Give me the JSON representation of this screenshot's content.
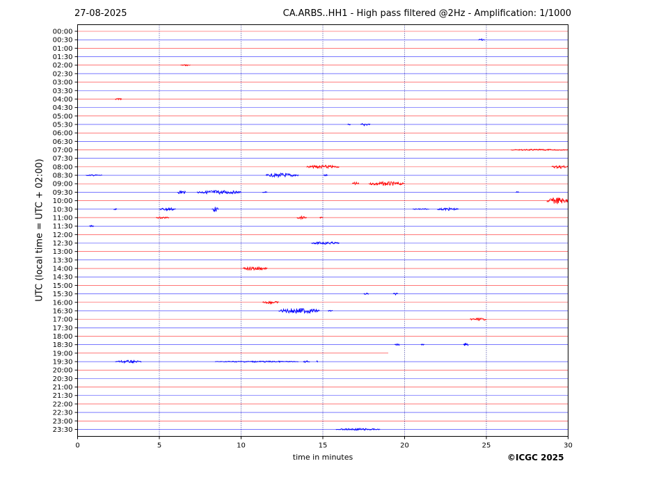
{
  "header": {
    "date": "27-08-2025",
    "title": "CA.ARBS..HH1 - High pass filtered @2Hz - Amplification: 1/1000"
  },
  "chart_data": {
    "type": "line",
    "title": "CA.ARBS..HH1 - High pass filtered @2Hz - Amplification: 1/1000",
    "xlabel": "time in minutes",
    "ylabel": "UTC (local time = UTC + 02:00)",
    "xlim": [
      0,
      30
    ],
    "xticks": [
      "0",
      "5",
      "10",
      "15",
      "20",
      "25",
      "30"
    ],
    "grid": "vertical dotted lines at 5-minute intervals",
    "trace_colors": [
      "#ff0000",
      "#0000ff"
    ],
    "rows": [
      "00:00",
      "00:30",
      "01:00",
      "01:30",
      "02:00",
      "02:30",
      "03:00",
      "03:30",
      "04:00",
      "04:30",
      "05:00",
      "05:30",
      "06:00",
      "06:30",
      "07:00",
      "07:30",
      "08:00",
      "08:30",
      "09:00",
      "09:30",
      "10:00",
      "10:30",
      "11:00",
      "11:30",
      "12:00",
      "12:30",
      "13:00",
      "13:30",
      "14:00",
      "14:30",
      "15:00",
      "15:30",
      "16:00",
      "16:30",
      "17:00",
      "17:30",
      "18:00",
      "18:30",
      "19:00",
      "19:30",
      "20:00",
      "20:30",
      "21:00",
      "21:30",
      "22:00",
      "22:30",
      "23:00",
      "23:30"
    ],
    "trace_extent_minutes": {
      "19:00": 19.0
    },
    "events": [
      {
        "row": "00:30",
        "start": 24.5,
        "end": 24.9,
        "amp": 1.5
      },
      {
        "row": "02:00",
        "start": 6.3,
        "end": 6.9,
        "amp": 1.0
      },
      {
        "row": "04:00",
        "start": 2.3,
        "end": 2.7,
        "amp": 1.5
      },
      {
        "row": "05:30",
        "start": 16.5,
        "end": 16.7,
        "amp": 1.5
      },
      {
        "row": "05:30",
        "start": 17.3,
        "end": 17.9,
        "amp": 2.0
      },
      {
        "row": "07:00",
        "start": 26.5,
        "end": 30.0,
        "amp": 1.0
      },
      {
        "row": "08:00",
        "start": 14.0,
        "end": 16.0,
        "amp": 2.5
      },
      {
        "row": "08:00",
        "start": 29.0,
        "end": 30.0,
        "amp": 2.5
      },
      {
        "row": "08:30",
        "start": 0.5,
        "end": 1.5,
        "amp": 1.0
      },
      {
        "row": "08:30",
        "start": 11.5,
        "end": 13.5,
        "amp": 3.0
      },
      {
        "row": "08:30",
        "start": 15.0,
        "end": 15.3,
        "amp": 1.5
      },
      {
        "row": "09:00",
        "start": 16.8,
        "end": 17.2,
        "amp": 2.5
      },
      {
        "row": "09:00",
        "start": 17.8,
        "end": 20.0,
        "amp": 3.0
      },
      {
        "row": "09:30",
        "start": 6.1,
        "end": 6.6,
        "amp": 3.0
      },
      {
        "row": "09:30",
        "start": 7.3,
        "end": 10.0,
        "amp": 3.0
      },
      {
        "row": "09:30",
        "start": 11.3,
        "end": 11.6,
        "amp": 1.0
      },
      {
        "row": "09:30",
        "start": 26.8,
        "end": 27.0,
        "amp": 1.0
      },
      {
        "row": "10:00",
        "start": 28.7,
        "end": 30.0,
        "amp": 5.0
      },
      {
        "row": "10:30",
        "start": 2.2,
        "end": 2.4,
        "amp": 1.0
      },
      {
        "row": "10:30",
        "start": 5.0,
        "end": 6.0,
        "amp": 2.5
      },
      {
        "row": "10:30",
        "start": 8.2,
        "end": 8.6,
        "amp": 3.5
      },
      {
        "row": "10:30",
        "start": 20.5,
        "end": 21.5,
        "amp": 1.0
      },
      {
        "row": "10:30",
        "start": 22.0,
        "end": 23.3,
        "amp": 2.0
      },
      {
        "row": "11:00",
        "start": 4.8,
        "end": 5.6,
        "amp": 1.5
      },
      {
        "row": "11:00",
        "start": 13.4,
        "end": 14.0,
        "amp": 2.0
      },
      {
        "row": "11:00",
        "start": 14.8,
        "end": 15.0,
        "amp": 1.0
      },
      {
        "row": "11:30",
        "start": 0.7,
        "end": 1.0,
        "amp": 1.0
      },
      {
        "row": "12:30",
        "start": 14.3,
        "end": 16.0,
        "amp": 2.0
      },
      {
        "row": "14:00",
        "start": 10.1,
        "end": 11.6,
        "amp": 3.0
      },
      {
        "row": "15:30",
        "start": 17.5,
        "end": 17.8,
        "amp": 1.5
      },
      {
        "row": "15:30",
        "start": 19.3,
        "end": 19.6,
        "amp": 1.5
      },
      {
        "row": "16:00",
        "start": 11.3,
        "end": 12.3,
        "amp": 2.0
      },
      {
        "row": "16:30",
        "start": 12.3,
        "end": 14.8,
        "amp": 4.0
      },
      {
        "row": "16:30",
        "start": 15.3,
        "end": 15.6,
        "amp": 1.0
      },
      {
        "row": "17:00",
        "start": 24.0,
        "end": 25.0,
        "amp": 2.0
      },
      {
        "row": "18:30",
        "start": 19.4,
        "end": 19.7,
        "amp": 1.5
      },
      {
        "row": "18:30",
        "start": 21.0,
        "end": 21.2,
        "amp": 1.0
      },
      {
        "row": "18:30",
        "start": 23.6,
        "end": 23.9,
        "amp": 2.5
      },
      {
        "row": "19:30",
        "start": 2.3,
        "end": 3.9,
        "amp": 2.0
      },
      {
        "row": "19:30",
        "start": 8.4,
        "end": 13.5,
        "amp": 1.0
      },
      {
        "row": "19:30",
        "start": 13.8,
        "end": 14.2,
        "amp": 1.5
      },
      {
        "row": "19:30",
        "start": 14.6,
        "end": 14.7,
        "amp": 1.5
      },
      {
        "row": "23:30",
        "start": 15.8,
        "end": 18.5,
        "amp": 1.5
      }
    ]
  },
  "footer": {
    "copyright": "©ICGC 2025"
  }
}
